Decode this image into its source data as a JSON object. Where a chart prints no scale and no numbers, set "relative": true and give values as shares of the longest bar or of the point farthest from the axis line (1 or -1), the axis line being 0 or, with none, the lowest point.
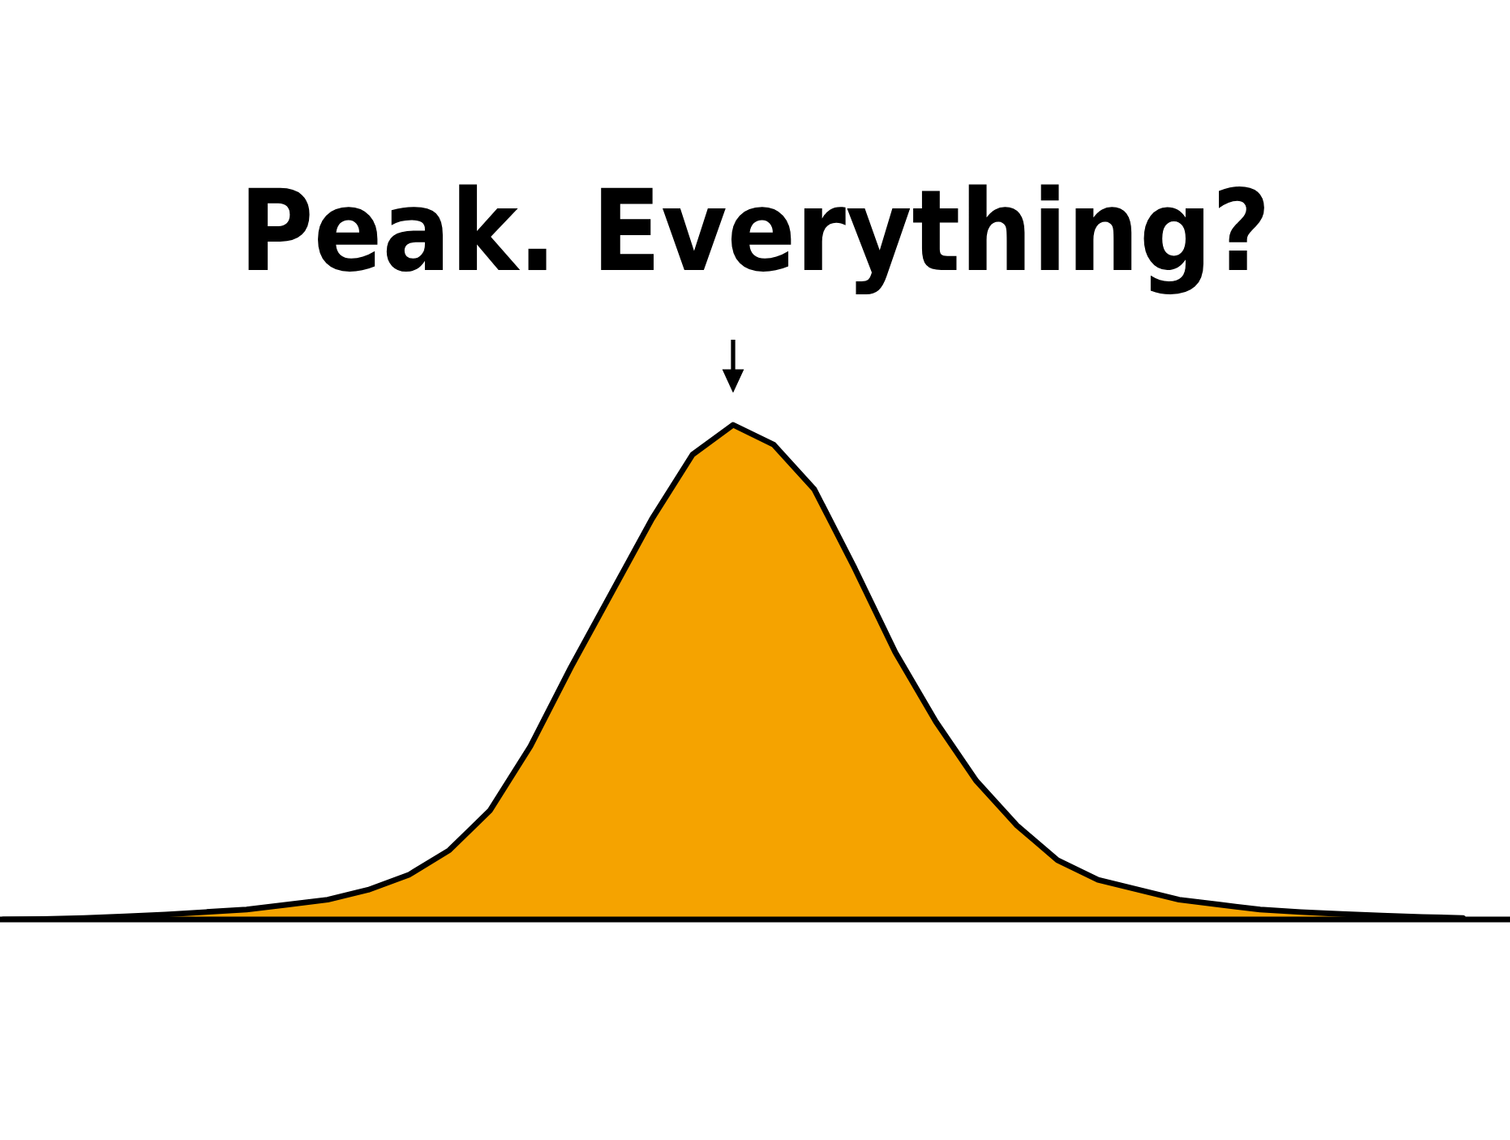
{
  "chart_data": {
    "type": "area",
    "title": "Peak. Everything?",
    "relative": true,
    "categories": [
      null,
      null,
      null,
      null,
      null,
      null,
      null,
      null,
      null,
      null,
      null,
      null,
      null,
      null,
      null,
      null,
      null,
      null,
      null,
      null,
      null,
      null,
      null,
      null,
      null,
      null,
      null,
      null,
      null,
      null,
      null,
      null,
      null,
      null,
      null,
      null,
      null
    ],
    "series": [
      {
        "color": "#f5a300",
        "values": [
          0,
          0.001,
          0.003,
          0.006,
          0.01,
          0.015,
          0.02,
          0.03,
          0.04,
          0.06,
          0.09,
          0.14,
          0.22,
          0.35,
          0.51,
          0.66,
          0.81,
          0.94,
          1,
          0.96,
          0.87,
          0.71,
          0.54,
          0.4,
          0.28,
          0.19,
          0.12,
          0.08,
          0.06,
          0.04,
          0.03,
          0.02,
          0.015,
          0.011,
          0.008,
          0.005,
          0.003
        ]
      }
    ],
    "grid": false
  }
}
